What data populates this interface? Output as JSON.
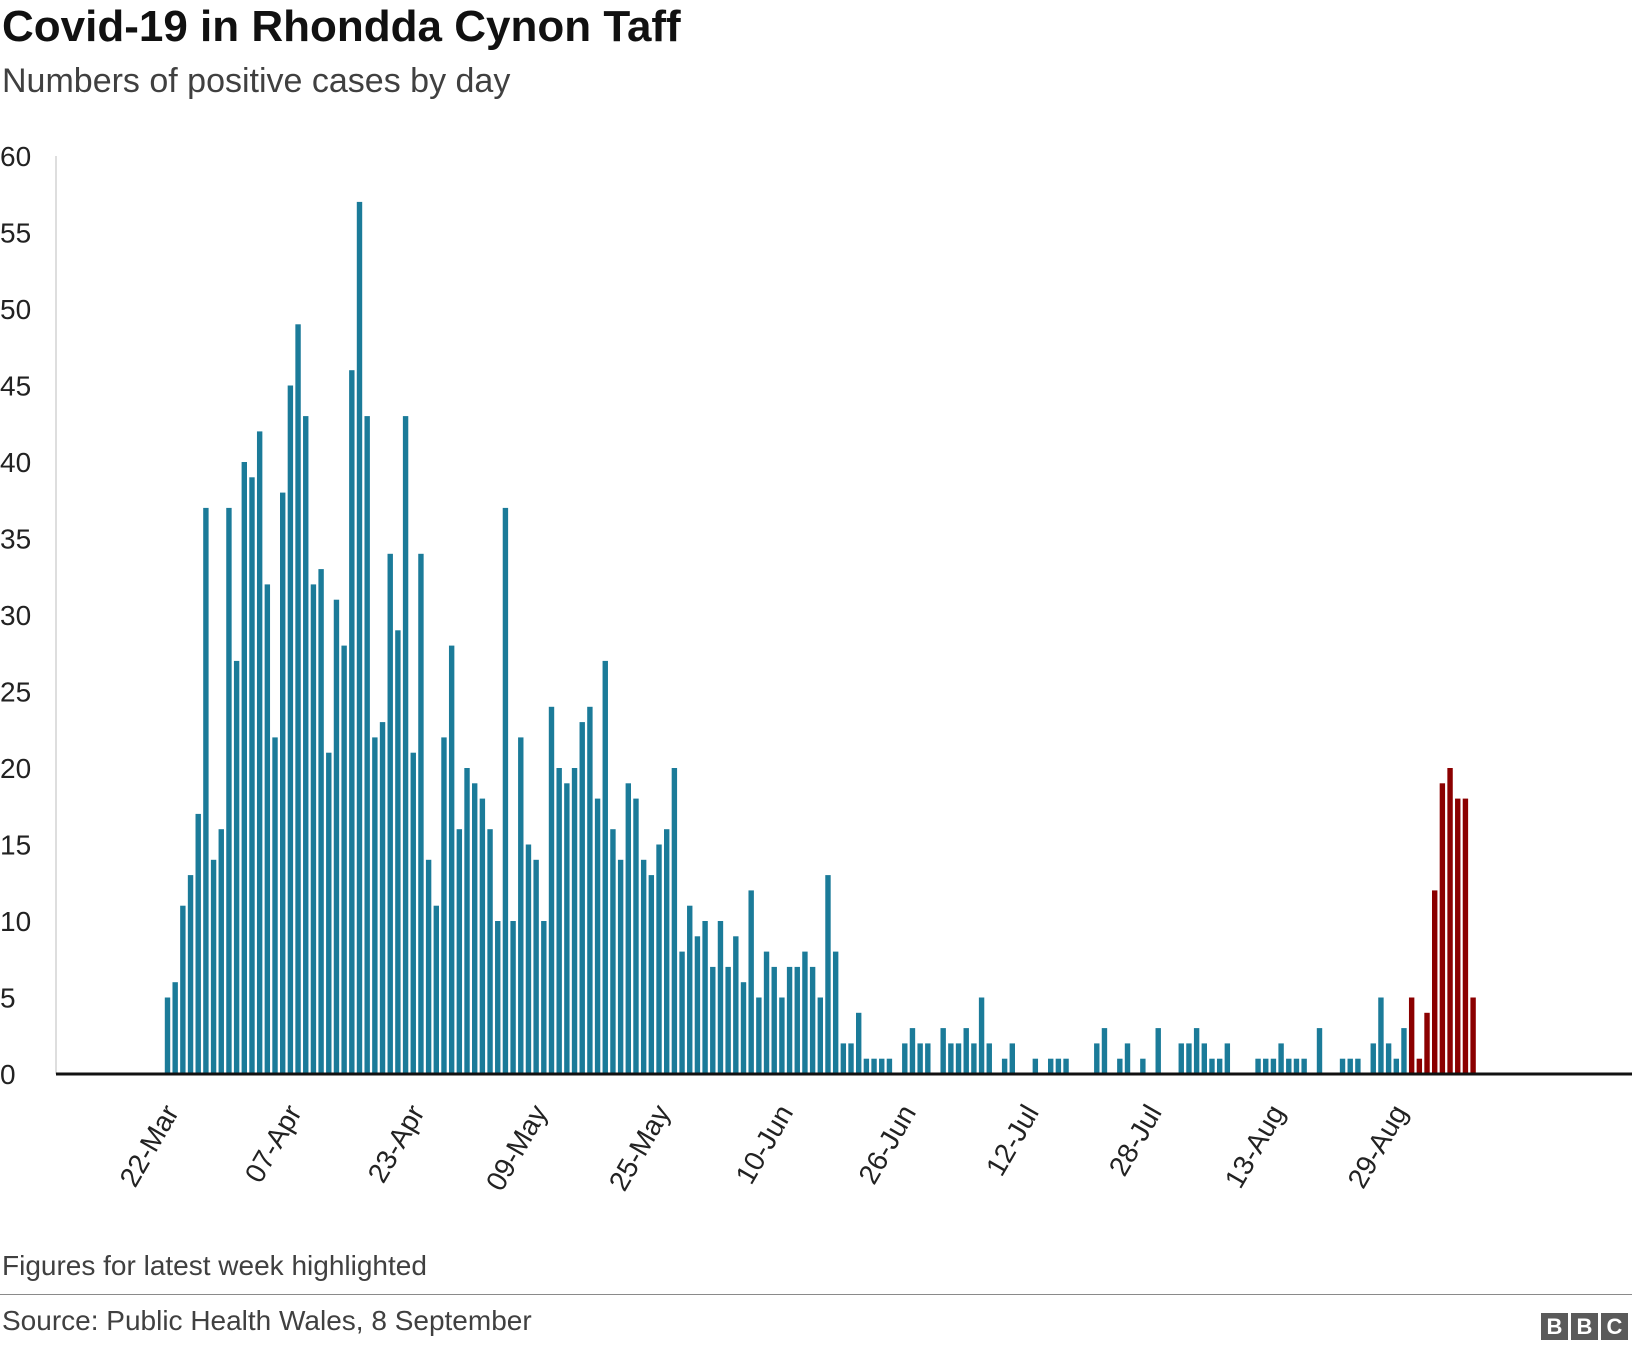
{
  "chart_data": {
    "type": "bar",
    "title": "Covid-19 in Rhondda Cynon Taff",
    "subtitle": "Numbers of positive cases by day",
    "xlabel": "",
    "ylabel": "",
    "ylim": [
      0,
      60
    ],
    "yticks": [
      0,
      5,
      10,
      15,
      20,
      25,
      30,
      35,
      40,
      45,
      50,
      55,
      60
    ],
    "grid": false,
    "legend": "none",
    "x_tick_labels": [
      "22-Mar",
      "07-Apr",
      "23-Apr",
      "09-May",
      "25-May",
      "10-Jun",
      "26-Jun",
      "12-Jul",
      "28-Jul",
      "13-Aug",
      "29-Aug"
    ],
    "x_tick_indices": [
      0,
      16,
      32,
      48,
      64,
      80,
      96,
      112,
      128,
      144,
      160
    ],
    "highlight_start_index": 162,
    "colors": {
      "bar": "#1b7b99",
      "highlight": "#8b0000",
      "axis": "#111111"
    },
    "values": [
      5,
      6,
      11,
      13,
      17,
      37,
      14,
      16,
      37,
      27,
      40,
      39,
      42,
      32,
      22,
      38,
      45,
      49,
      43,
      32,
      33,
      21,
      31,
      28,
      46,
      57,
      43,
      22,
      23,
      34,
      29,
      43,
      21,
      34,
      14,
      11,
      22,
      28,
      16,
      20,
      19,
      18,
      16,
      10,
      37,
      10,
      22,
      15,
      14,
      10,
      24,
      20,
      19,
      20,
      23,
      24,
      18,
      27,
      16,
      14,
      19,
      18,
      14,
      13,
      15,
      16,
      20,
      8,
      11,
      9,
      10,
      7,
      10,
      7,
      9,
      6,
      12,
      5,
      8,
      7,
      5,
      7,
      7,
      8,
      7,
      5,
      13,
      8,
      2,
      2,
      4,
      1,
      1,
      1,
      1,
      0,
      2,
      3,
      2,
      2,
      0,
      3,
      2,
      2,
      3,
      2,
      5,
      2,
      0,
      1,
      2,
      0,
      0,
      1,
      0,
      1,
      1,
      1,
      0,
      0,
      0,
      2,
      3,
      0,
      1,
      2,
      0,
      1,
      0,
      3,
      0,
      0,
      2,
      2,
      3,
      2,
      1,
      1,
      2,
      0,
      0,
      0,
      1,
      1,
      1,
      2,
      1,
      1,
      1,
      0,
      3,
      0,
      0,
      1,
      1,
      1,
      0,
      2,
      5,
      2,
      1,
      3,
      5,
      1,
      4,
      12,
      19,
      20,
      18,
      18,
      5
    ]
  },
  "note": "Figures for latest week highlighted",
  "source": "Source: Public Health Wales, 8 September",
  "logo": {
    "letters": [
      "B",
      "B",
      "C"
    ]
  }
}
